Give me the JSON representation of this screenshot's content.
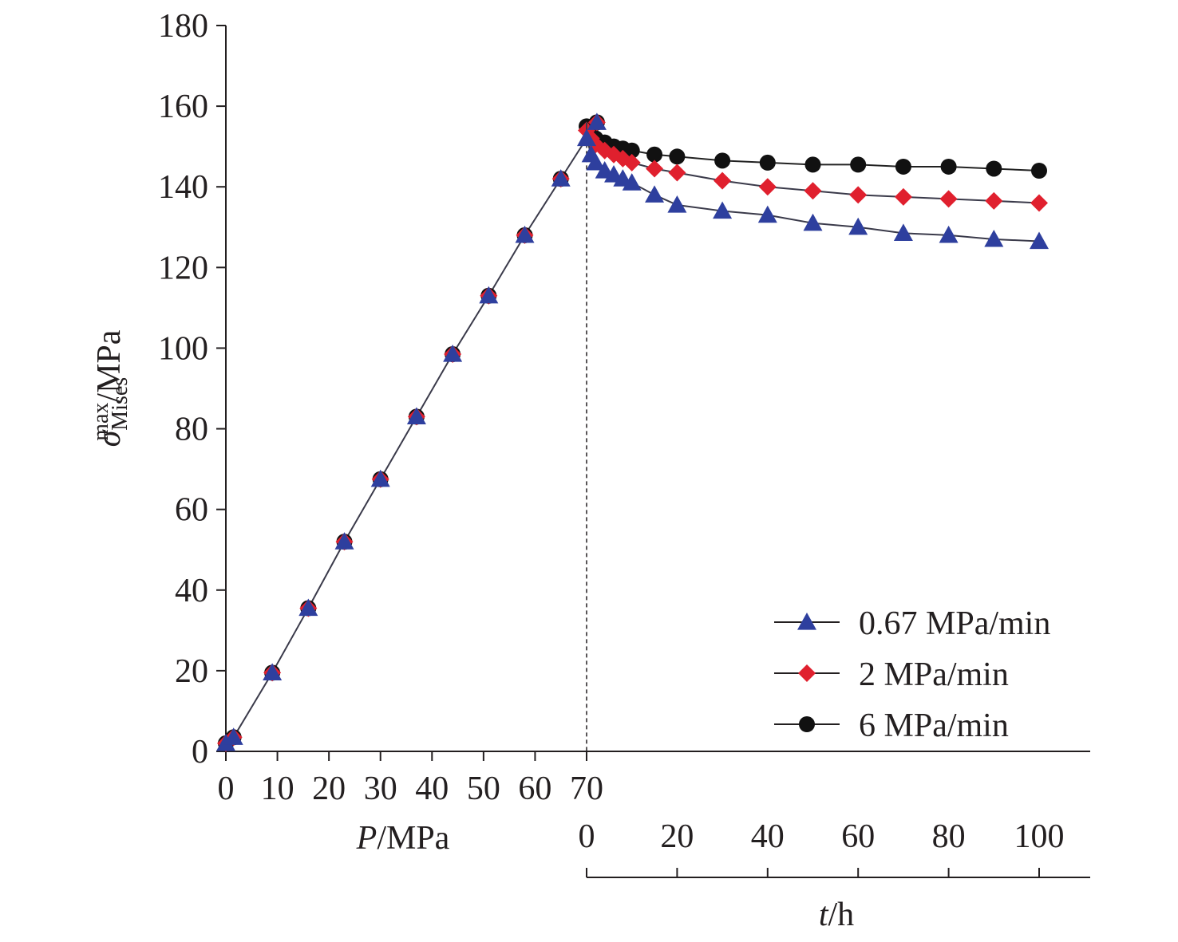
{
  "chart_data": {
    "type": "line",
    "title": "",
    "ylabel": {
      "symbol": "σ",
      "superscript": "max",
      "subscript": "Mises",
      "unit": "/MPa"
    },
    "y_axis": {
      "range": [
        0,
        180
      ],
      "ticks": [
        0,
        20,
        40,
        60,
        80,
        100,
        120,
        140,
        160,
        180
      ],
      "tick_labels": [
        "0",
        "20",
        "40",
        "60",
        "80",
        "100",
        "120",
        "140",
        "160",
        "180"
      ]
    },
    "loading_axis": {
      "label": {
        "symbol": "P",
        "unit": "/MPa"
      },
      "range": [
        0,
        70
      ],
      "ticks": [
        0,
        10,
        20,
        30,
        40,
        50,
        60,
        70
      ],
      "tick_labels": [
        "0",
        "10",
        "20",
        "30",
        "40",
        "50",
        "60",
        "70"
      ]
    },
    "holding_axis": {
      "label": {
        "symbol": "t",
        "unit": "/h"
      },
      "range": [
        0,
        100
      ],
      "ticks": [
        0,
        20,
        40,
        60,
        80,
        100
      ],
      "tick_labels": [
        "0",
        "20",
        "40",
        "60",
        "80",
        "100"
      ]
    },
    "grid": false,
    "legend_position": "bottom-right",
    "loading_phase": {
      "x": [
        0,
        1.5,
        9,
        16,
        23,
        30,
        37,
        44,
        51,
        58,
        65,
        72
      ],
      "y": [
        2,
        3.5,
        19.5,
        35.5,
        52,
        67.5,
        83,
        98.5,
        113,
        128,
        142,
        156
      ]
    },
    "series": [
      {
        "name": "0.67 MPa/min",
        "color": "#2e3f9e",
        "marker": "triangle",
        "holding_phase": {
          "t": [
            0,
            1,
            2,
            4,
            6,
            8,
            10,
            15,
            20,
            30,
            40,
            50,
            60,
            70,
            80,
            90,
            100
          ],
          "y": [
            152,
            148,
            146,
            144,
            143,
            142,
            141,
            138,
            135.5,
            134,
            133,
            131,
            130,
            128.5,
            128,
            127,
            126.5
          ]
        }
      },
      {
        "name": "2 MPa/min",
        "color": "#e0202e",
        "marker": "diamond",
        "holding_phase": {
          "t": [
            0,
            1,
            2,
            4,
            6,
            8,
            10,
            15,
            20,
            30,
            40,
            50,
            60,
            70,
            80,
            90,
            100
          ],
          "y": [
            154,
            152,
            150.5,
            149,
            148,
            147,
            146,
            144.5,
            143.5,
            141.5,
            140,
            139,
            138,
            137.5,
            137,
            136.5,
            136
          ]
        }
      },
      {
        "name": "6 MPa/min",
        "color": "#111111",
        "marker": "circle",
        "holding_phase": {
          "t": [
            0,
            1,
            2,
            4,
            6,
            8,
            10,
            15,
            20,
            30,
            40,
            50,
            60,
            70,
            80,
            90,
            100
          ],
          "y": [
            155,
            153,
            152,
            151,
            150,
            149.5,
            149,
            148,
            147.5,
            146.5,
            146,
            145.5,
            145.5,
            145,
            145,
            144.5,
            144
          ]
        }
      }
    ]
  }
}
